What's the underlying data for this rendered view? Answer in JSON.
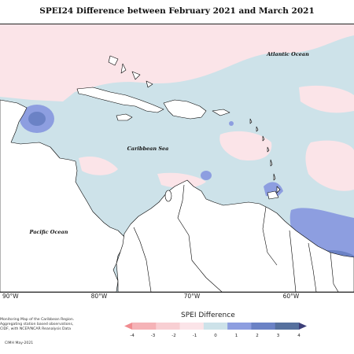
{
  "map": {
    "title": "SPEI24 Difference between February 2021 and March 2021",
    "ocean_labels": {
      "atlantic": "Atlantic Ocean",
      "caribbean": "Caribbean Sea",
      "pacific": "Pacific Ocean"
    },
    "longitude_labels": [
      "90°W",
      "80°W",
      "70°W",
      "60°W"
    ],
    "credit_lines": [
      "Monitoring Map of the Caribbean Region.",
      "Aggregating station based observations,",
      "CIDF, with NCEP/NCAR Reanalysis Data"
    ],
    "copyright": "CIMH May-2021",
    "colors": {
      "ocean_neutral_neg": "#fbe4e8",
      "ocean_neutral_pos": "#cde2e9",
      "moderate_wet": "#8d9ee0",
      "strong_wet": "#6b82c5",
      "land": "#ffffff",
      "coastline": "#000000"
    }
  },
  "legend": {
    "title": "SPEI Difference",
    "tick_labels": [
      "-4",
      "-3",
      "-2",
      "-1",
      "0",
      "1",
      "2",
      "3",
      "4"
    ],
    "colors": [
      "#f08c90",
      "#f5b3b7",
      "#f8cfd3",
      "#fbe4e8",
      "#cde2e9",
      "#8d9ee0",
      "#6b82c5",
      "#56709e",
      "#3c3e78"
    ]
  }
}
